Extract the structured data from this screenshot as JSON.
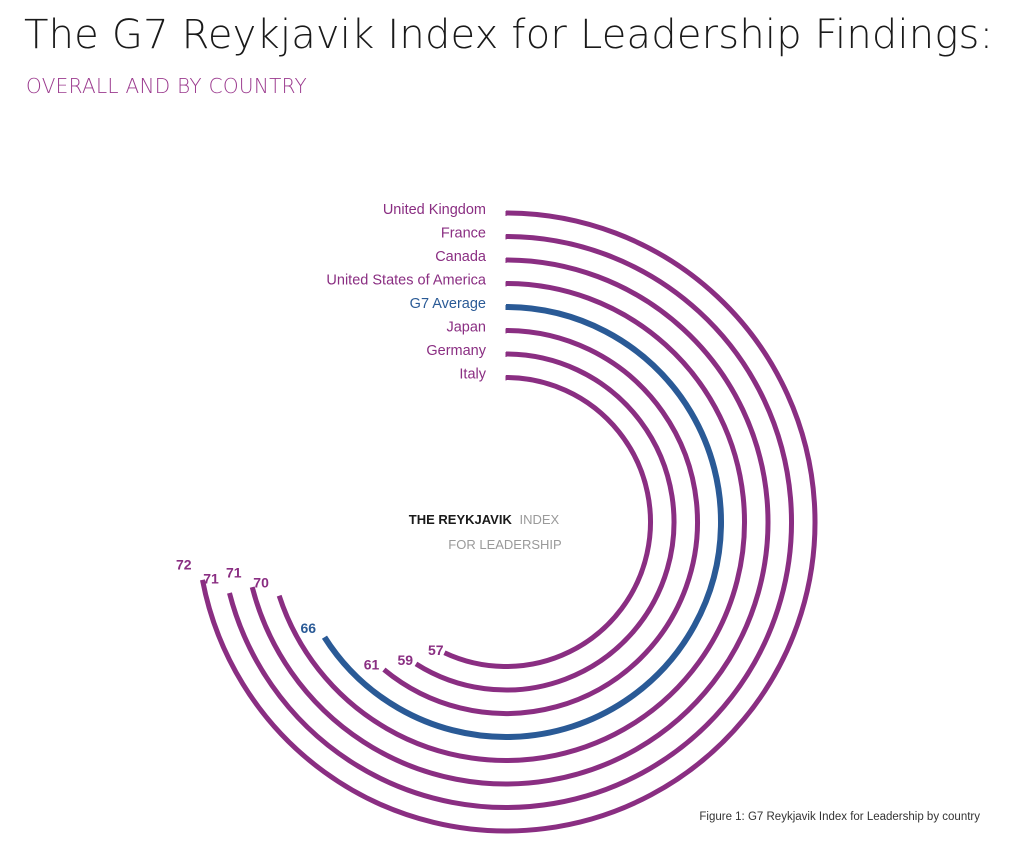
{
  "header": {
    "title": "The G7 Reykjavik Index for Leadership Findings:",
    "subtitle": "OVERALL AND BY COUNTRY"
  },
  "center_label": {
    "bold": "THE REYKJAVIK",
    "light1": "INDEX",
    "light2": "FOR LEADERSHIP"
  },
  "caption": "Figure 1: G7 Reykjavik Index for Leadership by country",
  "colors": {
    "country": "#8a2e82",
    "average": "#2a5a96",
    "title": "#1a1a1a",
    "subtitle": "#9b3a8e",
    "center_bold": "#1a1a1a",
    "center_light": "#9a9a9a"
  },
  "chart_data": {
    "type": "radial-bar",
    "title": "The G7 Reykjavik Index for Leadership Findings:",
    "subtitle": "OVERALL AND BY COUNTRY",
    "scale_max": 100,
    "series": [
      {
        "name": "United Kingdom",
        "value": 72,
        "kind": "country"
      },
      {
        "name": "France",
        "value": 71,
        "kind": "country"
      },
      {
        "name": "Canada",
        "value": 71,
        "kind": "country"
      },
      {
        "name": "United States of America",
        "value": 70,
        "kind": "country"
      },
      {
        "name": "G7 Average",
        "value": 66,
        "kind": "average"
      },
      {
        "name": "Japan",
        "value": 61,
        "kind": "country"
      },
      {
        "name": "Germany",
        "value": 59,
        "kind": "country"
      },
      {
        "name": "Italy",
        "value": 57,
        "kind": "country"
      }
    ]
  }
}
